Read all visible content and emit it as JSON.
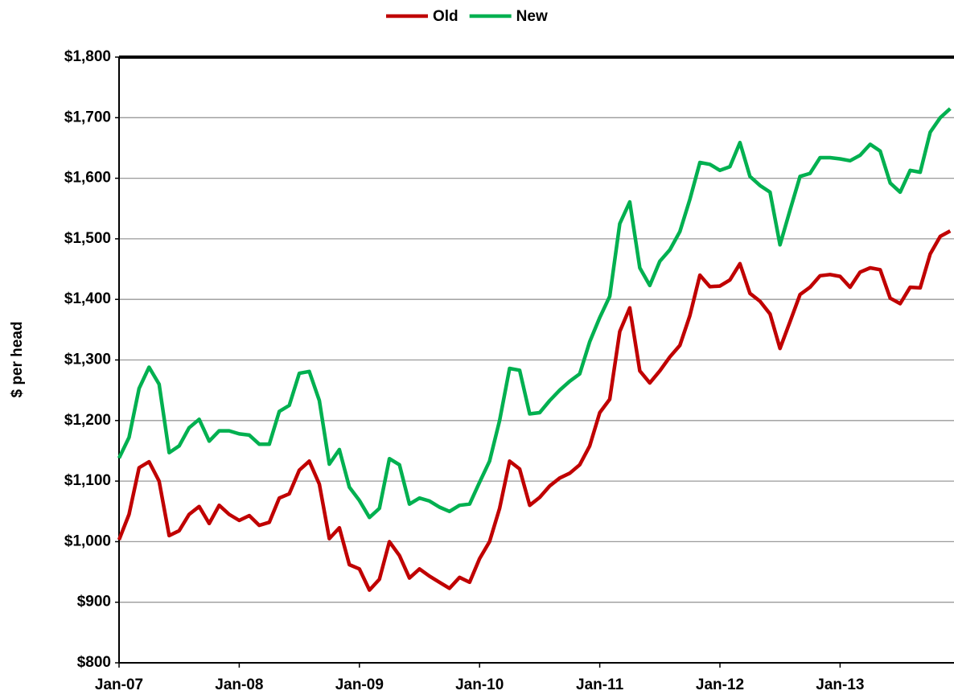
{
  "chart_data": {
    "type": "line",
    "y_label": "$ per head",
    "categories": [
      "Jan-07",
      null,
      null,
      null,
      null,
      null,
      null,
      null,
      null,
      null,
      null,
      null,
      "Jan-08",
      null,
      null,
      null,
      null,
      null,
      null,
      null,
      null,
      null,
      null,
      null,
      "Jan-09",
      null,
      null,
      null,
      null,
      null,
      null,
      null,
      null,
      null,
      null,
      null,
      "Jan-10",
      null,
      null,
      null,
      null,
      null,
      null,
      null,
      null,
      null,
      null,
      null,
      "Jan-11",
      null,
      null,
      null,
      null,
      null,
      null,
      null,
      null,
      null,
      null,
      null,
      "Jan-12",
      null,
      null,
      null,
      null,
      null,
      null,
      null,
      null,
      null,
      null,
      null,
      "Jan-13",
      null,
      null,
      null,
      null,
      null,
      null,
      null,
      null,
      null,
      null,
      null
    ],
    "series": [
      {
        "name": "Old",
        "color": "#c00000",
        "values": [
          1003,
          1045,
          1122,
          1132,
          1100,
          1010,
          1018,
          1045,
          1058,
          1030,
          1060,
          1045,
          1035,
          1043,
          1027,
          1032,
          1072,
          1079,
          1118,
          1133,
          1095,
          1005,
          1023,
          962,
          955,
          920,
          938,
          1000,
          977,
          940,
          955,
          943,
          933,
          923,
          941,
          933,
          972,
          1000,
          1055,
          1133,
          1120,
          1060,
          1073,
          1092,
          1105,
          1113,
          1127,
          1158,
          1213,
          1235,
          1347,
          1386,
          1282,
          1262,
          1282,
          1305,
          1324,
          1373,
          1440,
          1421,
          1422,
          1432,
          1459,
          1410,
          1397,
          1376,
          1319,
          1363,
          1408,
          1420,
          1439,
          1441,
          1438,
          1420,
          1445,
          1452,
          1449,
          1402,
          1393,
          1420,
          1419,
          1475,
          1504,
          1513
        ]
      },
      {
        "name": "New",
        "color": "#00b050",
        "values": [
          1138,
          1172,
          1253,
          1288,
          1260,
          1147,
          1158,
          1188,
          1202,
          1166,
          1183,
          1183,
          1178,
          1176,
          1161,
          1161,
          1215,
          1225,
          1278,
          1281,
          1233,
          1128,
          1152,
          1090,
          1068,
          1040,
          1055,
          1137,
          1127,
          1062,
          1072,
          1067,
          1057,
          1050,
          1060,
          1062,
          1098,
          1133,
          1200,
          1286,
          1283,
          1211,
          1213,
          1233,
          1250,
          1265,
          1277,
          1330,
          1370,
          1405,
          1525,
          1561,
          1452,
          1423,
          1463,
          1482,
          1512,
          1565,
          1626,
          1623,
          1613,
          1619,
          1659,
          1603,
          1588,
          1577,
          1490,
          1547,
          1603,
          1608,
          1634,
          1634,
          1632,
          1629,
          1638,
          1656,
          1645,
          1592,
          1577,
          1613,
          1610,
          1676,
          1700,
          1715
        ]
      }
    ],
    "ylim": [
      800,
      1800
    ],
    "yticks": [
      {
        "value": 800,
        "label": "$800"
      },
      {
        "value": 900,
        "label": "$900"
      },
      {
        "value": 1000,
        "label": "$1,000"
      },
      {
        "value": 1100,
        "label": "$1,100"
      },
      {
        "value": 1200,
        "label": "$1,200"
      },
      {
        "value": 1300,
        "label": "$1,300"
      },
      {
        "value": 1400,
        "label": "$1,400"
      },
      {
        "value": 1500,
        "label": "$1,500"
      },
      {
        "value": 1600,
        "label": "$1,600"
      },
      {
        "value": 1700,
        "label": "$1,700"
      },
      {
        "value": 1800,
        "label": "$1,800"
      }
    ],
    "grid": true,
    "legend": "top"
  }
}
